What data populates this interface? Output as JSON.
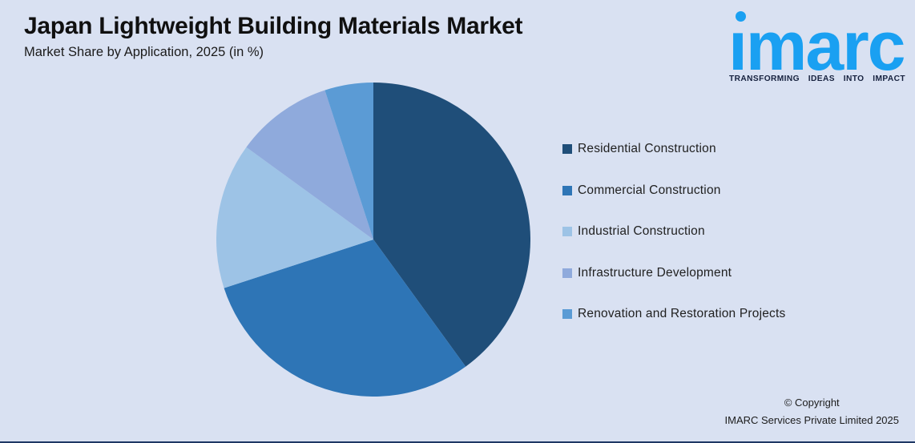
{
  "header": {
    "title": "Japan Lightweight Building Materials Market",
    "subtitle": "Market Share by Application, 2025 (in %)"
  },
  "logo": {
    "word": "ımarc",
    "tagline": "TRANSFORMING IDEAS INTO IMPACT"
  },
  "chart_data": {
    "type": "pie",
    "title": "Japan Lightweight Building Materials Market",
    "subtitle": "Market Share by Application, 2025 (in %)",
    "unit": "percent",
    "categories": [
      "Residential Construction",
      "Commercial Construction",
      "Industrial Construction",
      "Infrastructure Development",
      "Renovation and Restoration Projects"
    ],
    "values": [
      40,
      30,
      15,
      10,
      5
    ],
    "colors": [
      "#1F4E79",
      "#2E75B6",
      "#9DC3E6",
      "#8FAADC",
      "#5B9BD5"
    ],
    "start_angle_deg": 0,
    "direction": "clockwise",
    "legend_position": "right",
    "data_labels": false
  },
  "footer": {
    "copyright_line1": "© Copyright",
    "copyright_line2": "IMARC Services Private Limited 2025"
  },
  "colors": {
    "background": "#D9E1F2",
    "bottom_bar": "#1F3864",
    "logo_blue": "#1AA0F2",
    "logo_dark": "#16213E"
  }
}
